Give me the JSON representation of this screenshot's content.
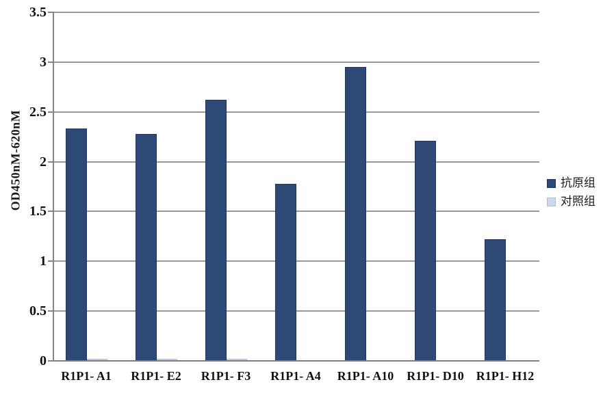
{
  "chart_data": {
    "type": "bar",
    "title": "",
    "xlabel": "",
    "ylabel": "OD450nM-620nM",
    "ylim": [
      0,
      3.5
    ],
    "ytick_step": 0.5,
    "yticks": [
      "0",
      "0.5",
      "1",
      "1.5",
      "2",
      "2.5",
      "3",
      "3.5"
    ],
    "grid": "horizontal",
    "legend_position": "right",
    "categories": [
      "R1P1- A1",
      "R1P1- E2",
      "R1P1- F3",
      "R1P1- A4",
      "R1P1- A10",
      "R1P1- D10",
      "R1P1- H12"
    ],
    "series": [
      {
        "name": "抗原组",
        "color": "#2F4977",
        "border_color": "#22365C",
        "values": [
          2.33,
          2.28,
          2.62,
          1.78,
          2.95,
          2.21,
          1.22
        ]
      },
      {
        "name": "对照组",
        "color": "#CDD9EB",
        "border_color": "#A9BCD9",
        "values": [
          0.02,
          0.02,
          0.02,
          0.01,
          0.01,
          0.01,
          0.01
        ]
      }
    ]
  },
  "colors": {
    "gridline": "#999999",
    "axis": "#858585",
    "text": "#111111",
    "background": "#FFFFFF"
  }
}
